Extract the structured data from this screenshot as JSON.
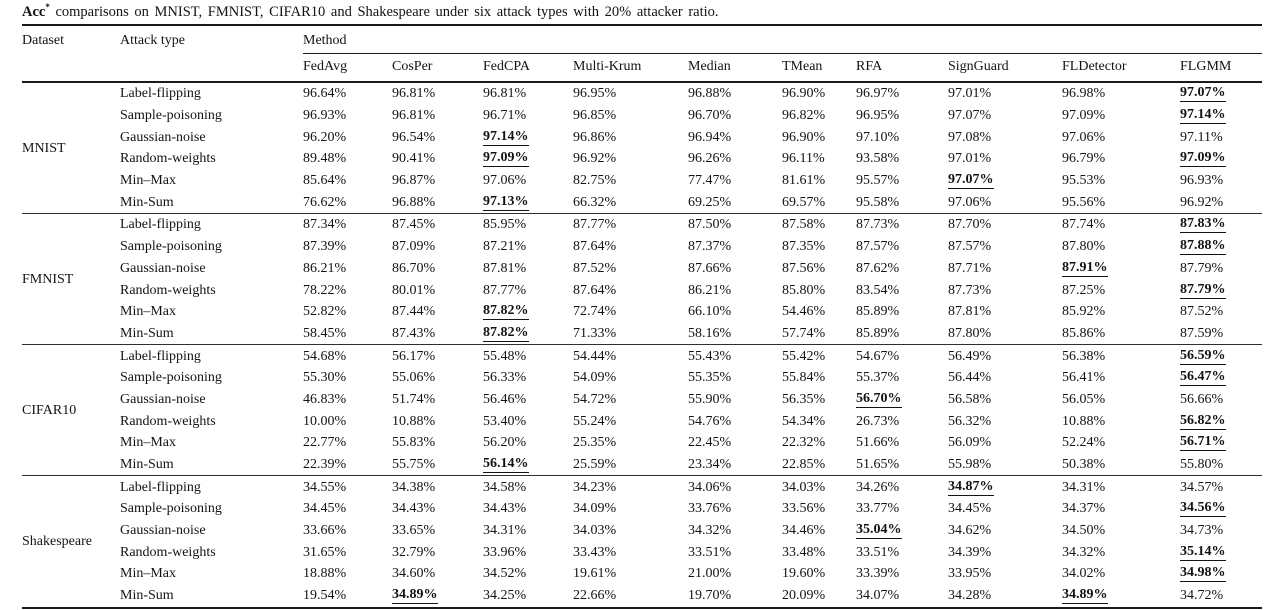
{
  "caption": {
    "bold_prefix": "Acc",
    "superscript": "*",
    "rest": "comparisons on MNIST, FMNIST, CIFAR10 and Shakespeare under six attack types with 20% attacker ratio."
  },
  "table": {
    "header": {
      "dataset": "Dataset",
      "attack_type": "Attack type",
      "method_group": "Method",
      "methods": [
        "FedAvg",
        "CosPer",
        "FedCPA",
        "Multi-Krum",
        "Median",
        "TMean",
        "RFA",
        "SignGuard",
        "FLDetector",
        "FLGMM"
      ]
    },
    "best_style": "bold-underline",
    "sections": [
      {
        "dataset": "MNIST",
        "rows": [
          {
            "attack": "Label-flipping",
            "values": [
              "96.64%",
              "96.81%",
              "96.81%",
              "96.95%",
              "96.88%",
              "96.90%",
              "96.97%",
              "97.01%",
              "96.98%",
              "97.07%"
            ],
            "best": [
              9
            ]
          },
          {
            "attack": "Sample-poisoning",
            "values": [
              "96.93%",
              "96.81%",
              "96.71%",
              "96.85%",
              "96.70%",
              "96.82%",
              "96.95%",
              "97.07%",
              "97.09%",
              "97.14%"
            ],
            "best": [
              9
            ]
          },
          {
            "attack": "Gaussian-noise",
            "values": [
              "96.20%",
              "96.54%",
              "97.14%",
              "96.86%",
              "96.94%",
              "96.90%",
              "97.10%",
              "97.08%",
              "97.06%",
              "97.11%"
            ],
            "best": [
              2
            ]
          },
          {
            "attack": "Random-weights",
            "values": [
              "89.48%",
              "90.41%",
              "97.09%",
              "96.92%",
              "96.26%",
              "96.11%",
              "93.58%",
              "97.01%",
              "96.79%",
              "97.09%"
            ],
            "best": [
              2,
              9
            ]
          },
          {
            "attack": "Min–Max",
            "values": [
              "85.64%",
              "96.87%",
              "97.06%",
              "82.75%",
              "77.47%",
              "81.61%",
              "95.57%",
              "97.07%",
              "95.53%",
              "96.93%"
            ],
            "best": [
              7
            ]
          },
          {
            "attack": "Min-Sum",
            "values": [
              "76.62%",
              "96.88%",
              "97.13%",
              "66.32%",
              "69.25%",
              "69.57%",
              "95.58%",
              "97.06%",
              "95.56%",
              "96.92%"
            ],
            "best": [
              2
            ]
          }
        ]
      },
      {
        "dataset": "FMNIST",
        "rows": [
          {
            "attack": "Label-flipping",
            "values": [
              "87.34%",
              "87.45%",
              "85.95%",
              "87.77%",
              "87.50%",
              "87.58%",
              "87.73%",
              "87.70%",
              "87.74%",
              "87.83%"
            ],
            "best": [
              9
            ]
          },
          {
            "attack": "Sample-poisoning",
            "values": [
              "87.39%",
              "87.09%",
              "87.21%",
              "87.64%",
              "87.37%",
              "87.35%",
              "87.57%",
              "87.57%",
              "87.80%",
              "87.88%"
            ],
            "best": [
              9
            ]
          },
          {
            "attack": "Gaussian-noise",
            "values": [
              "86.21%",
              "86.70%",
              "87.81%",
              "87.52%",
              "87.66%",
              "87.56%",
              "87.62%",
              "87.71%",
              "87.91%",
              "87.79%"
            ],
            "best": [
              8
            ]
          },
          {
            "attack": "Random-weights",
            "values": [
              "78.22%",
              "80.01%",
              "87.77%",
              "87.64%",
              "86.21%",
              "85.80%",
              "83.54%",
              "87.73%",
              "87.25%",
              "87.79%"
            ],
            "best": [
              9
            ]
          },
          {
            "attack": "Min–Max",
            "values": [
              "52.82%",
              "87.44%",
              "87.82%",
              "72.74%",
              "66.10%",
              "54.46%",
              "85.89%",
              "87.81%",
              "85.92%",
              "87.52%"
            ],
            "best": [
              2
            ]
          },
          {
            "attack": "Min-Sum",
            "values": [
              "58.45%",
              "87.43%",
              "87.82%",
              "71.33%",
              "58.16%",
              "57.74%",
              "85.89%",
              "87.80%",
              "85.86%",
              "87.59%"
            ],
            "best": [
              2
            ]
          }
        ]
      },
      {
        "dataset": "CIFAR10",
        "rows": [
          {
            "attack": "Label-flipping",
            "values": [
              "54.68%",
              "56.17%",
              "55.48%",
              "54.44%",
              "55.43%",
              "55.42%",
              "54.67%",
              "56.49%",
              "56.38%",
              "56.59%"
            ],
            "best": [
              9
            ]
          },
          {
            "attack": "Sample-poisoning",
            "values": [
              "55.30%",
              "55.06%",
              "56.33%",
              "54.09%",
              "55.35%",
              "55.84%",
              "55.37%",
              "56.44%",
              "56.41%",
              "56.47%"
            ],
            "best": [
              9
            ]
          },
          {
            "attack": "Gaussian-noise",
            "values": [
              "46.83%",
              "51.74%",
              "56.46%",
              "54.72%",
              "55.90%",
              "56.35%",
              "56.70%",
              "56.58%",
              "56.05%",
              "56.66%"
            ],
            "best": [
              6
            ]
          },
          {
            "attack": "Random-weights",
            "values": [
              "10.00%",
              "10.88%",
              "53.40%",
              "55.24%",
              "54.76%",
              "54.34%",
              "26.73%",
              "56.32%",
              "10.88%",
              "56.82%"
            ],
            "best": [
              9
            ]
          },
          {
            "attack": "Min–Max",
            "values": [
              "22.77%",
              "55.83%",
              "56.20%",
              "25.35%",
              "22.45%",
              "22.32%",
              "51.66%",
              "56.09%",
              "52.24%",
              "56.71%"
            ],
            "best": [
              9
            ]
          },
          {
            "attack": "Min-Sum",
            "values": [
              "22.39%",
              "55.75%",
              "56.14%",
              "25.59%",
              "23.34%",
              "22.85%",
              "51.65%",
              "55.98%",
              "50.38%",
              "55.80%"
            ],
            "best": [
              2
            ]
          }
        ]
      },
      {
        "dataset": "Shakespeare",
        "rows": [
          {
            "attack": "Label-flipping",
            "values": [
              "34.55%",
              "34.38%",
              "34.58%",
              "34.23%",
              "34.06%",
              "34.03%",
              "34.26%",
              "34.87%",
              "34.31%",
              "34.57%"
            ],
            "best": [
              7
            ]
          },
          {
            "attack": "Sample-poisoning",
            "values": [
              "34.45%",
              "34.43%",
              "34.43%",
              "34.09%",
              "33.76%",
              "33.56%",
              "33.77%",
              "34.45%",
              "34.37%",
              "34.56%"
            ],
            "best": [
              9
            ]
          },
          {
            "attack": "Gaussian-noise",
            "values": [
              "33.66%",
              "33.65%",
              "34.31%",
              "34.03%",
              "34.32%",
              "34.46%",
              "35.04%",
              "34.62%",
              "34.50%",
              "34.73%"
            ],
            "best": [
              6
            ]
          },
          {
            "attack": "Random-weights",
            "values": [
              "31.65%",
              "32.79%",
              "33.96%",
              "33.43%",
              "33.51%",
              "33.48%",
              "33.51%",
              "34.39%",
              "34.32%",
              "35.14%"
            ],
            "best": [
              9
            ]
          },
          {
            "attack": "Min–Max",
            "values": [
              "18.88%",
              "34.60%",
              "34.52%",
              "19.61%",
              "21.00%",
              "19.60%",
              "33.39%",
              "33.95%",
              "34.02%",
              "34.98%"
            ],
            "best": [
              9
            ]
          },
          {
            "attack": "Min-Sum",
            "values": [
              "19.54%",
              "34.89%",
              "34.25%",
              "22.66%",
              "19.70%",
              "20.09%",
              "34.07%",
              "34.28%",
              "34.89%",
              "34.72%"
            ],
            "best": [
              1,
              8
            ]
          }
        ]
      }
    ]
  }
}
